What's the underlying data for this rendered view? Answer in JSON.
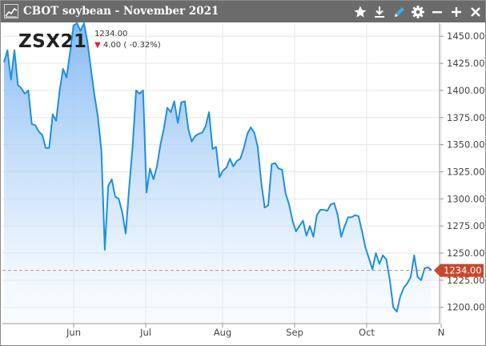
{
  "window": {
    "title": "CBOT soybean - November 2021",
    "buttons": [
      "star-icon",
      "download-icon",
      "pencil-icon",
      "gear-icon",
      "minimize-icon",
      "maximize-icon",
      "close-icon"
    ]
  },
  "quote": {
    "symbol": "ZSX21",
    "last": "1234.00",
    "change_arrow": "▼",
    "change_text": "4.00 ( -0.32%)"
  },
  "colors": {
    "titlebar": "#6b6b6b",
    "line": "#1f8fe0",
    "price_tag": "#c9472b",
    "down": "#e0262b"
  },
  "chart_data": {
    "type": "area",
    "x_start": "2021-05-03",
    "x_ticks": [
      {
        "label": "Jun",
        "date": "2021-06-01"
      },
      {
        "label": "Jul",
        "date": "2021-07-01"
      },
      {
        "label": "Aug",
        "date": "2021-08-02"
      },
      {
        "label": "Sep",
        "date": "2021-09-01"
      },
      {
        "label": "Oct",
        "date": "2021-10-01"
      },
      {
        "label": "N",
        "date": "2021-11-01"
      }
    ],
    "y_ticks": [
      1200,
      1225,
      1250,
      1275,
      1300,
      1325,
      1350,
      1375,
      1400,
      1425,
      1450
    ],
    "ylim": [
      1185,
      1462
    ],
    "last_value": 1234.0,
    "last_label": "1234.00",
    "grid": true,
    "series": [
      {
        "values": [
          1426,
          1437,
          1410,
          1437,
          1405,
          1402,
          1397,
          1400,
          1369,
          1368,
          1362,
          1359,
          1347,
          1347,
          1378,
          1372,
          1400,
          1420,
          1412,
          1435,
          1460,
          1462,
          1455,
          1462,
          1445,
          1420,
          1396,
          1376,
          1345,
          1253,
          1312,
          1318,
          1302,
          1300,
          1288,
          1268,
          1310,
          1348,
          1400,
          1397,
          1400,
          1306,
          1328,
          1318,
          1330,
          1350,
          1365,
          1384,
          1380,
          1390,
          1370,
          1389,
          1390,
          1365,
          1353,
          1358,
          1360,
          1361,
          1367,
          1380,
          1346,
          1348,
          1320,
          1326,
          1329,
          1337,
          1330,
          1335,
          1337,
          1347,
          1360,
          1366,
          1361,
          1348,
          1315,
          1292,
          1294,
          1332,
          1333,
          1328,
          1327,
          1305,
          1295,
          1280,
          1270,
          1275,
          1280,
          1266,
          1275,
          1265,
          1285,
          1290,
          1290,
          1289,
          1295,
          1296,
          1285,
          1265,
          1275,
          1283,
          1283,
          1285,
          1284,
          1270,
          1255,
          1245,
          1235,
          1250,
          1240,
          1248,
          1244,
          1225,
          1200,
          1196,
          1210,
          1218,
          1222,
          1228,
          1248,
          1228,
          1225,
          1236,
          1237,
          1234
        ]
      }
    ]
  }
}
